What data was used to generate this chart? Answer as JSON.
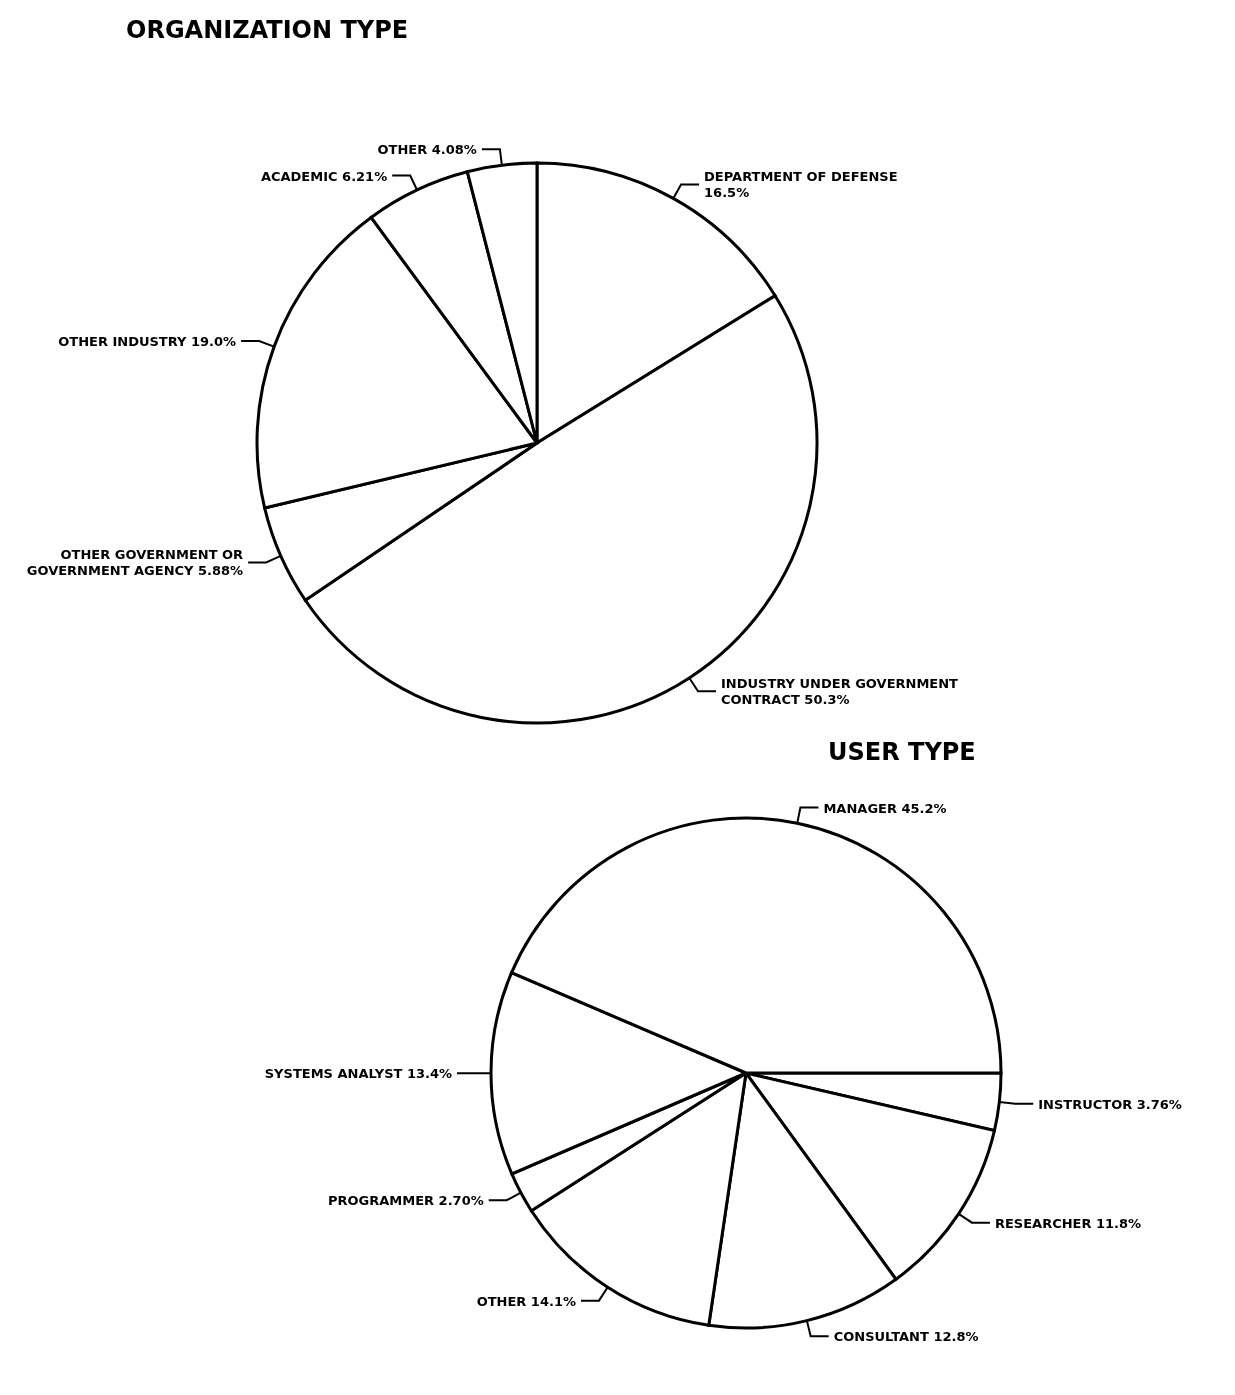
{
  "chart_data": [
    {
      "type": "pie",
      "title": "ORGANIZATION TYPE",
      "categories": [
        "DEPARTMENT OF DEFENSE",
        "INDUSTRY UNDER GOVERNMENT CONTRACT",
        "OTHER GOVERNMENT OR GOVERNMENT AGENCY",
        "OTHER INDUSTRY",
        "ACADEMIC",
        "OTHER"
      ],
      "values": [
        16.5,
        50.3,
        5.88,
        19.0,
        6.21,
        4.08
      ],
      "value_labels": [
        "16.5%",
        "50.3%",
        "5.88%",
        "19.0%",
        "6.21%",
        "4.08%"
      ],
      "colors": [
        "#ffffff",
        "#ffffff",
        "#ffffff",
        "#ffffff",
        "#ffffff",
        "#ffffff"
      ]
    },
    {
      "type": "pie",
      "title": "USER TYPE",
      "categories": [
        "INSTRUCTOR",
        "RESEARCHER",
        "CONSULTANT",
        "OTHER",
        "PROGRAMMER",
        "SYSTEMS ANALYST",
        "MANAGER"
      ],
      "values": [
        3.76,
        11.8,
        12.8,
        14.1,
        2.7,
        13.4,
        45.2
      ],
      "value_labels": [
        "3.76%",
        "11.8%",
        "12.8%",
        "14.1%",
        "2.70%",
        "13.4%",
        "45.2%"
      ],
      "colors": [
        "#ffffff",
        "#ffffff",
        "#ffffff",
        "#ffffff",
        "#ffffff",
        "#ffffff",
        "#ffffff"
      ]
    }
  ]
}
